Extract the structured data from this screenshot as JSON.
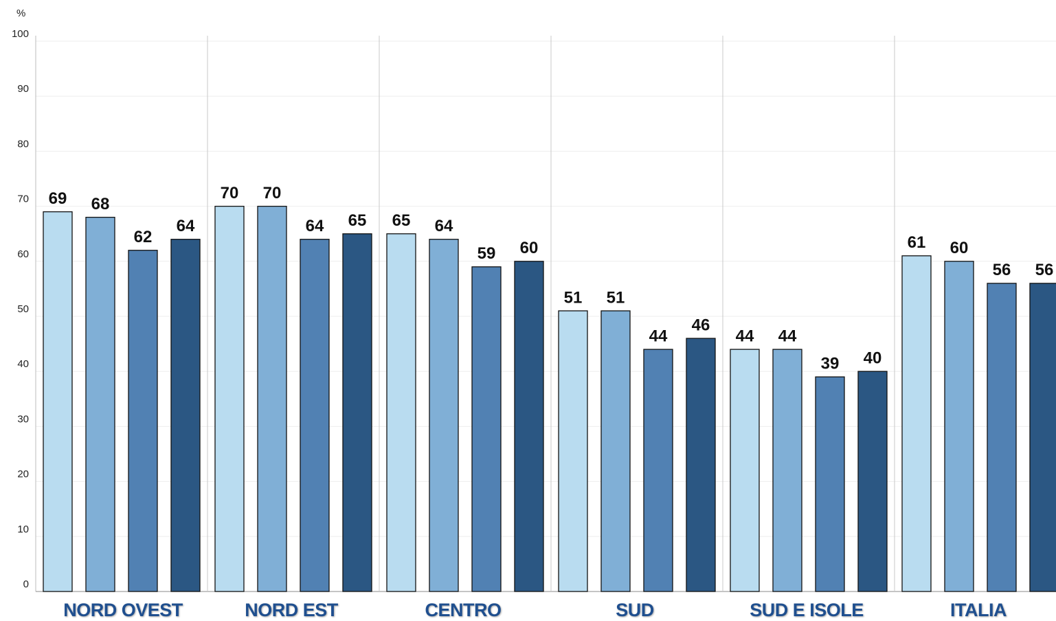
{
  "chart_data": {
    "type": "bar",
    "y_label": "%",
    "categories": [
      "NORD OVEST",
      "NORD EST",
      "CENTRO",
      "SUD",
      "SUD E ISOLE",
      "ITALIA"
    ],
    "series": [
      {
        "color": "#b9dcf0",
        "values": [
          69,
          70,
          65,
          51,
          44,
          61
        ]
      },
      {
        "color": "#80afd6",
        "values": [
          68,
          70,
          64,
          51,
          44,
          60
        ]
      },
      {
        "color": "#5181b3",
        "values": [
          62,
          64,
          59,
          44,
          39,
          56
        ]
      },
      {
        "color": "#2b5783",
        "values": [
          64,
          65,
          60,
          46,
          40,
          56
        ]
      }
    ],
    "ylim": [
      0,
      100
    ],
    "yticks": [
      0,
      10,
      20,
      30,
      40,
      50,
      60,
      70,
      80,
      90,
      100
    ],
    "grid": true
  }
}
